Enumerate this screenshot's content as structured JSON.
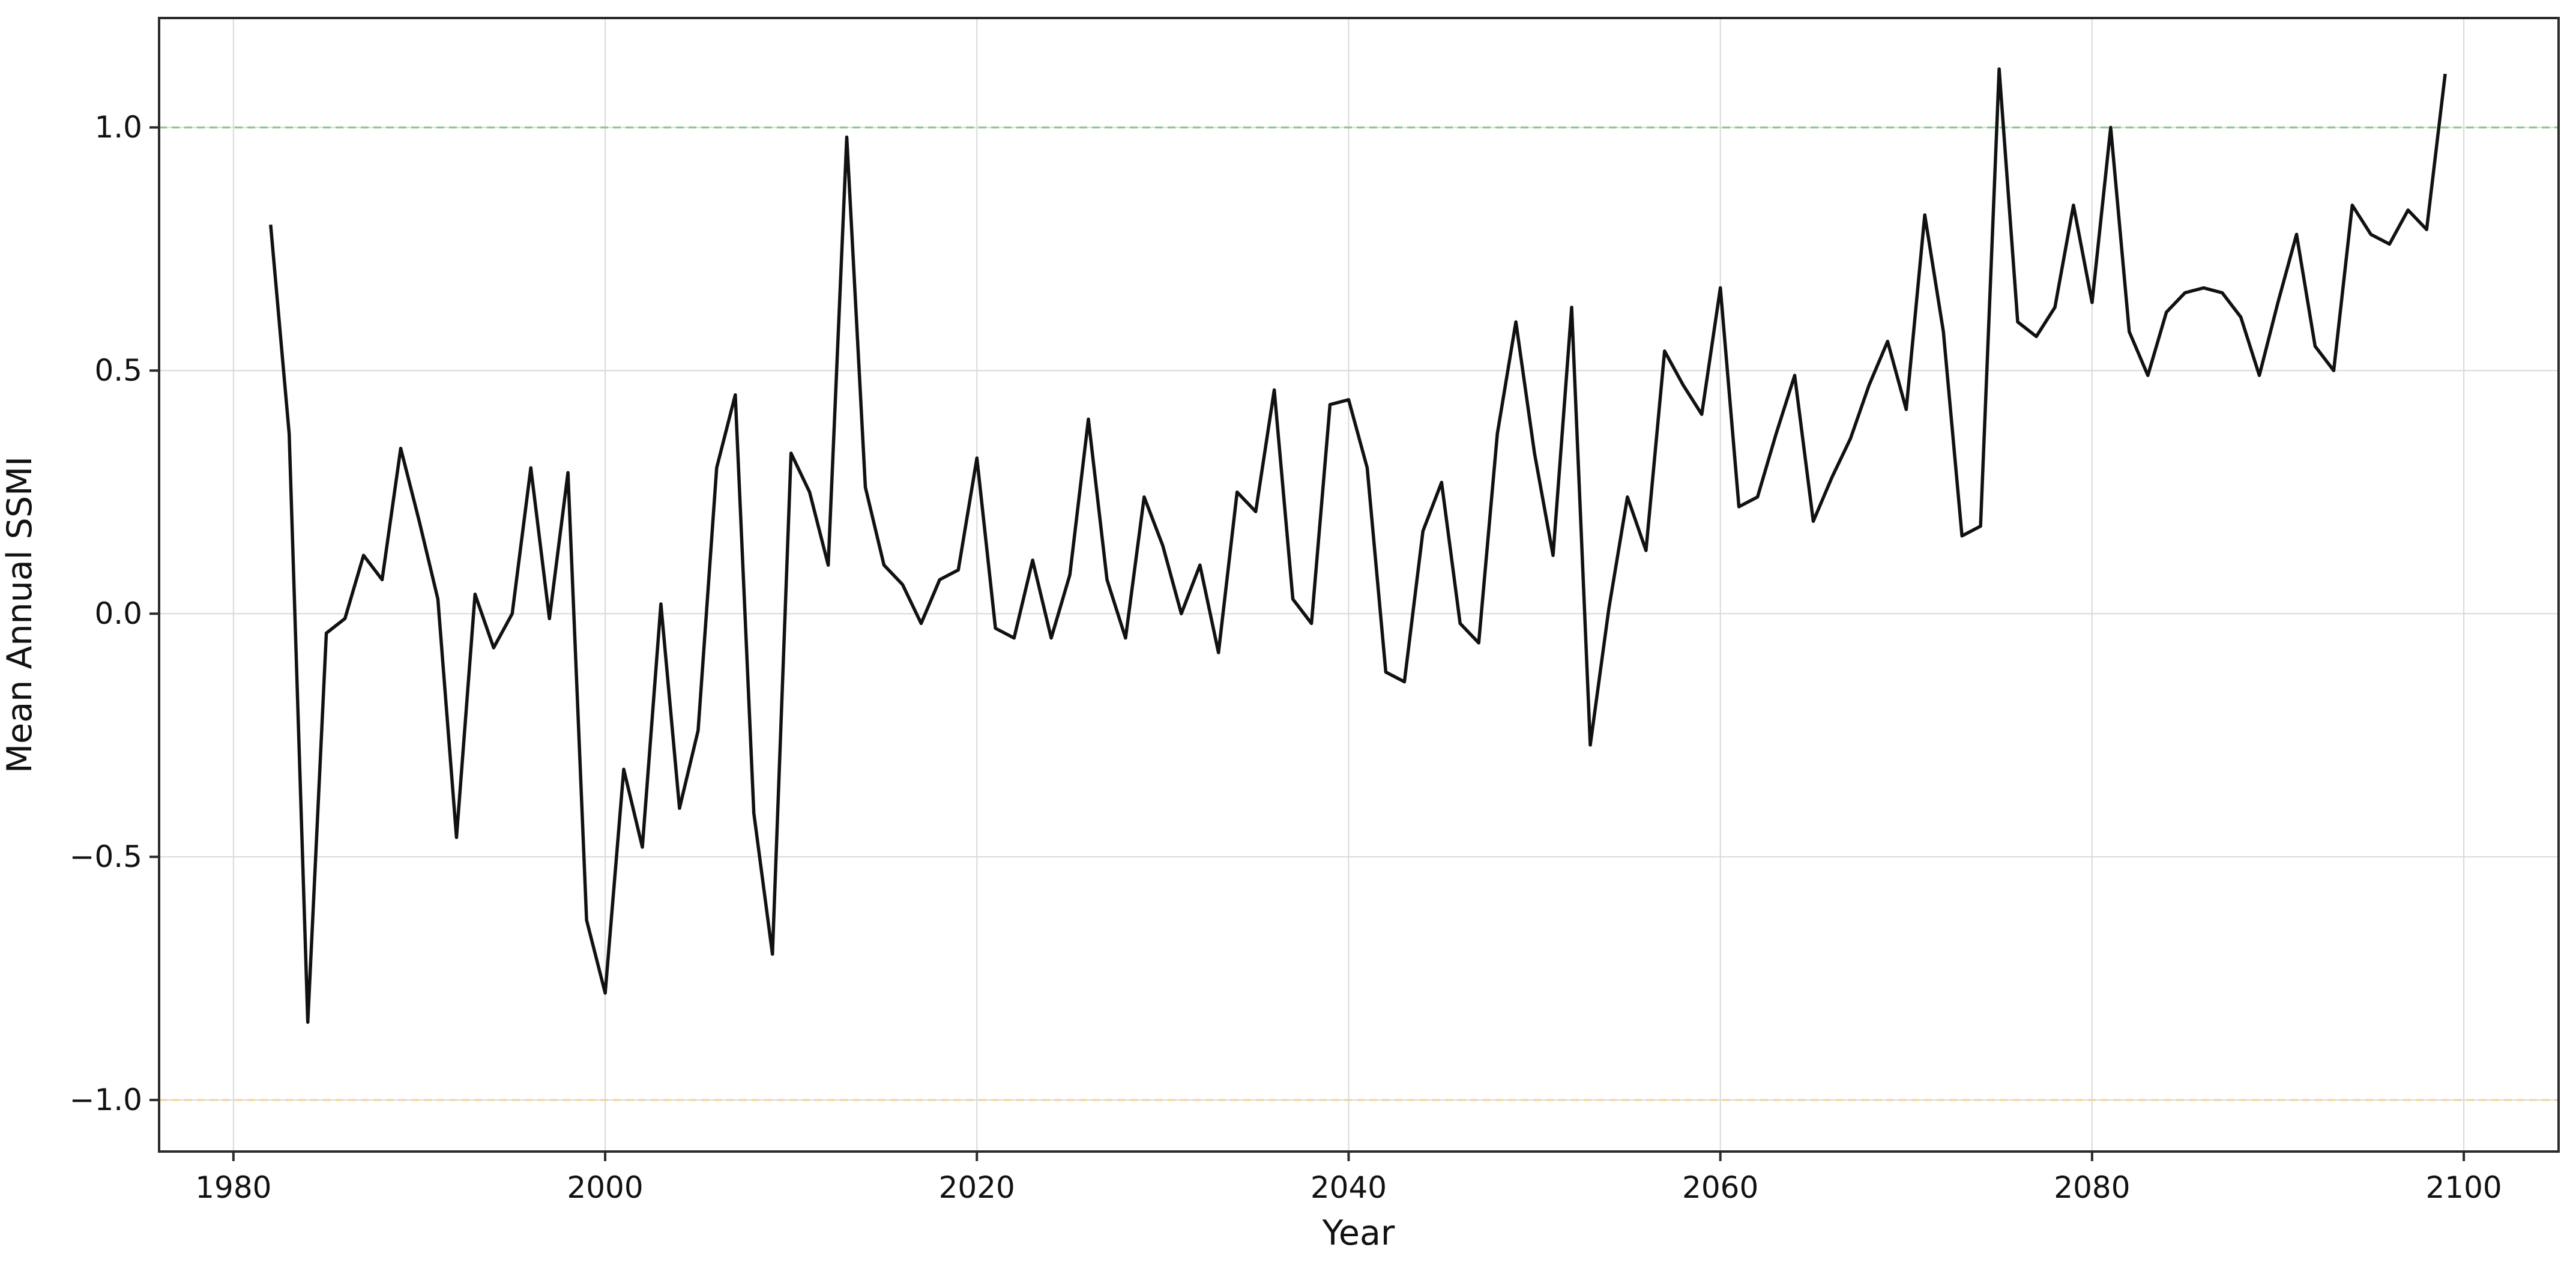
{
  "page": {
    "background": "#ffffff"
  },
  "chart_data": {
    "type": "line",
    "title": "",
    "xlabel": "Year",
    "ylabel": "Mean Annual SSMI",
    "years": [
      1982,
      1983,
      1984,
      1985,
      1986,
      1987,
      1988,
      1989,
      1990,
      1991,
      1992,
      1993,
      1994,
      1995,
      1996,
      1997,
      1998,
      1999,
      2000,
      2001,
      2002,
      2003,
      2004,
      2005,
      2006,
      2007,
      2008,
      2009,
      2010,
      2011,
      2012,
      2013,
      2014,
      2015,
      2016,
      2017,
      2018,
      2019,
      2020,
      2021,
      2022,
      2023,
      2024,
      2025,
      2026,
      2027,
      2028,
      2029,
      2030,
      2031,
      2032,
      2033,
      2034,
      2035,
      2036,
      2037,
      2038,
      2039,
      2040,
      2041,
      2042,
      2043,
      2044,
      2045,
      2046,
      2047,
      2048,
      2049,
      2050,
      2051,
      2052,
      2053,
      2054,
      2055,
      2056,
      2057,
      2058,
      2059,
      2060,
      2061,
      2062,
      2063,
      2064,
      2065,
      2066,
      2067,
      2068,
      2069,
      2070,
      2071,
      2072,
      2073,
      2074,
      2075,
      2076,
      2077,
      2078,
      2079,
      2080,
      2081,
      2082,
      2083,
      2084,
      2085,
      2086,
      2087,
      2088,
      2089,
      2090,
      2091,
      2092,
      2093,
      2094,
      2095,
      2096,
      2097,
      2098,
      2099
    ],
    "values": [
      0.8,
      0.37,
      -0.84,
      -0.04,
      -0.01,
      0.12,
      0.07,
      0.34,
      0.19,
      0.03,
      -0.46,
      0.04,
      -0.07,
      0.0,
      0.3,
      -0.01,
      0.29,
      -0.63,
      -0.78,
      -0.32,
      -0.48,
      0.02,
      -0.4,
      -0.24,
      0.3,
      0.45,
      -0.41,
      -0.7,
      0.33,
      0.25,
      0.1,
      0.98,
      0.26,
      0.1,
      0.06,
      -0.02,
      0.07,
      0.09,
      0.32,
      -0.03,
      -0.05,
      0.11,
      -0.05,
      0.08,
      0.4,
      0.07,
      -0.05,
      0.24,
      0.14,
      0.0,
      0.1,
      -0.08,
      0.25,
      0.21,
      0.46,
      0.03,
      -0.02,
      0.43,
      0.44,
      0.3,
      -0.12,
      -0.14,
      0.17,
      0.27,
      -0.02,
      -0.06,
      0.37,
      0.6,
      0.33,
      0.12,
      0.63,
      -0.27,
      0.01,
      0.24,
      0.13,
      0.54,
      0.47,
      0.41,
      0.67,
      0.22,
      0.24,
      0.37,
      0.49,
      0.19,
      0.28,
      0.36,
      0.47,
      0.56,
      0.42,
      0.82,
      0.58,
      0.16,
      0.18,
      1.12,
      0.6,
      0.57,
      0.63,
      0.84,
      0.64,
      1.0,
      0.58,
      0.49,
      0.62,
      0.66,
      0.67,
      0.66,
      0.61,
      0.49,
      0.64,
      0.78,
      0.55,
      0.5,
      0.84,
      0.78,
      0.76,
      0.83,
      0.79,
      1.11
    ],
    "line_color": "#111111",
    "xlim": [
      1976.0,
      2105.1
    ],
    "ylim": [
      -1.106,
      1.225
    ],
    "x_ticks": [
      1980,
      2000,
      2020,
      2040,
      2060,
      2080,
      2100
    ],
    "x_tick_labels": [
      "1980",
      "2000",
      "2020",
      "2040",
      "2060",
      "2080",
      "2100"
    ],
    "y_ticks": [
      -1.0,
      -0.5,
      0.0,
      0.5,
      1.0
    ],
    "y_tick_labels": [
      "−1.0",
      "−0.5",
      "0.0",
      "0.5",
      "1.0"
    ],
    "grid": true,
    "grid_color": "#d9d9d9",
    "spine_color": "#2b2b2b",
    "legend_position": "none",
    "reference_lines": [
      {
        "name": "upper-threshold",
        "value": 1.0,
        "color": "#8cc88c",
        "style": "dashed"
      },
      {
        "name": "lower-threshold",
        "value": -1.0,
        "color": "#f4d49c",
        "style": "dashed"
      }
    ]
  }
}
